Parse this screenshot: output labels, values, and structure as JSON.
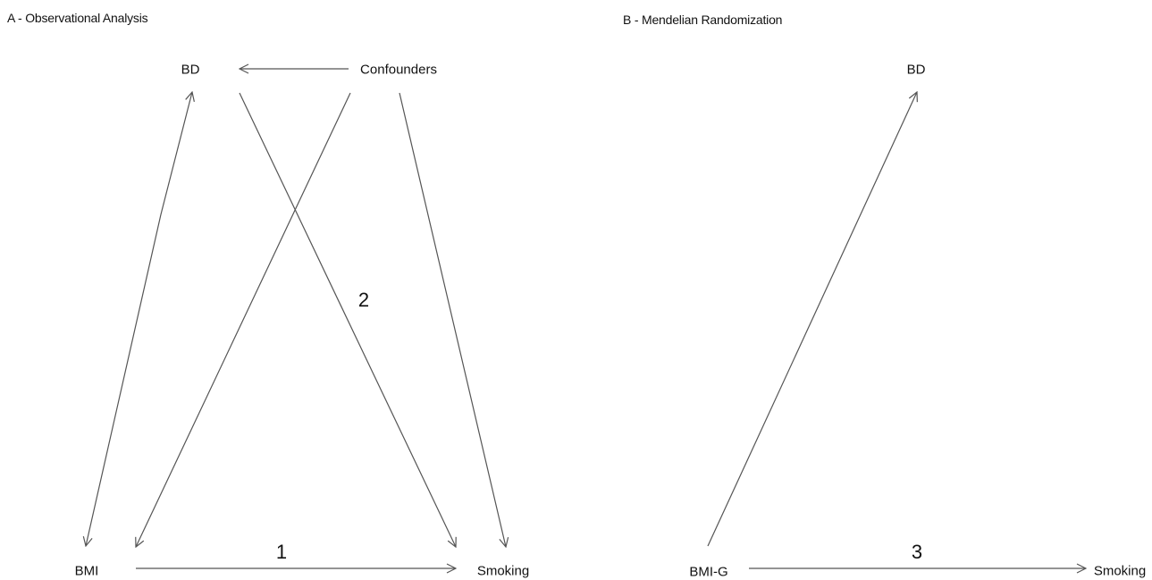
{
  "panels": {
    "a": {
      "title": "A - Observational Analysis",
      "nodes": {
        "bd": "BD",
        "confounders": "Confounders",
        "bmi": "BMI",
        "smoking": "Smoking"
      },
      "labels": {
        "one": "1",
        "two": "2"
      }
    },
    "b": {
      "title": "B - Mendelian Randomization",
      "nodes": {
        "bd": "BD",
        "bmig": "BMI-G",
        "smoking": "Smoking"
      },
      "labels": {
        "three": "3"
      }
    }
  },
  "colors": {
    "edge": "#555555",
    "text": "#111111"
  }
}
